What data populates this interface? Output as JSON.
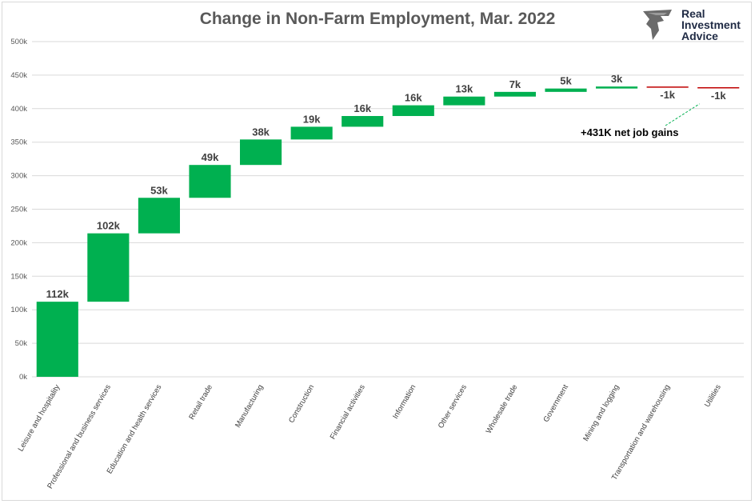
{
  "title": "Change in Non-Farm Employment, Mar. 2022",
  "logo": {
    "lines": [
      "Real",
      "Investment",
      "Advice"
    ],
    "icon": "eagle-icon"
  },
  "annotation": "+431K net job gains",
  "colors": {
    "positive": "#00b050",
    "negative": "#c00000",
    "grid": "#d9d9d9",
    "text": "#595959"
  },
  "chart_data": {
    "type": "waterfall",
    "title": "Change in Non-Farm Employment, Mar. 2022",
    "ylim": [
      0,
      500
    ],
    "yticks": [
      "0k",
      "50k",
      "100k",
      "150k",
      "200k",
      "250k",
      "300k",
      "350k",
      "400k",
      "450k",
      "500k"
    ],
    "grid": true,
    "categories": [
      "Leisure and hospitality",
      "Professional and business services",
      "Education and health services",
      "Retail trade",
      "Manufacturing",
      "Construction",
      "Financial activities",
      "Information",
      "Other services",
      "Wholesale trade",
      "Government",
      "Mining and logging",
      "Transportation and warehousing",
      "Utilities"
    ],
    "values": [
      112,
      102,
      53,
      49,
      38,
      19,
      16,
      16,
      13,
      7,
      5,
      3,
      -1,
      -1
    ],
    "labels": [
      "112k",
      "102k",
      "53k",
      "49k",
      "38k",
      "19k",
      "16k",
      "16k",
      "13k",
      "7k",
      "5k",
      "3k",
      "-1k",
      "-1k"
    ],
    "total": 431
  }
}
